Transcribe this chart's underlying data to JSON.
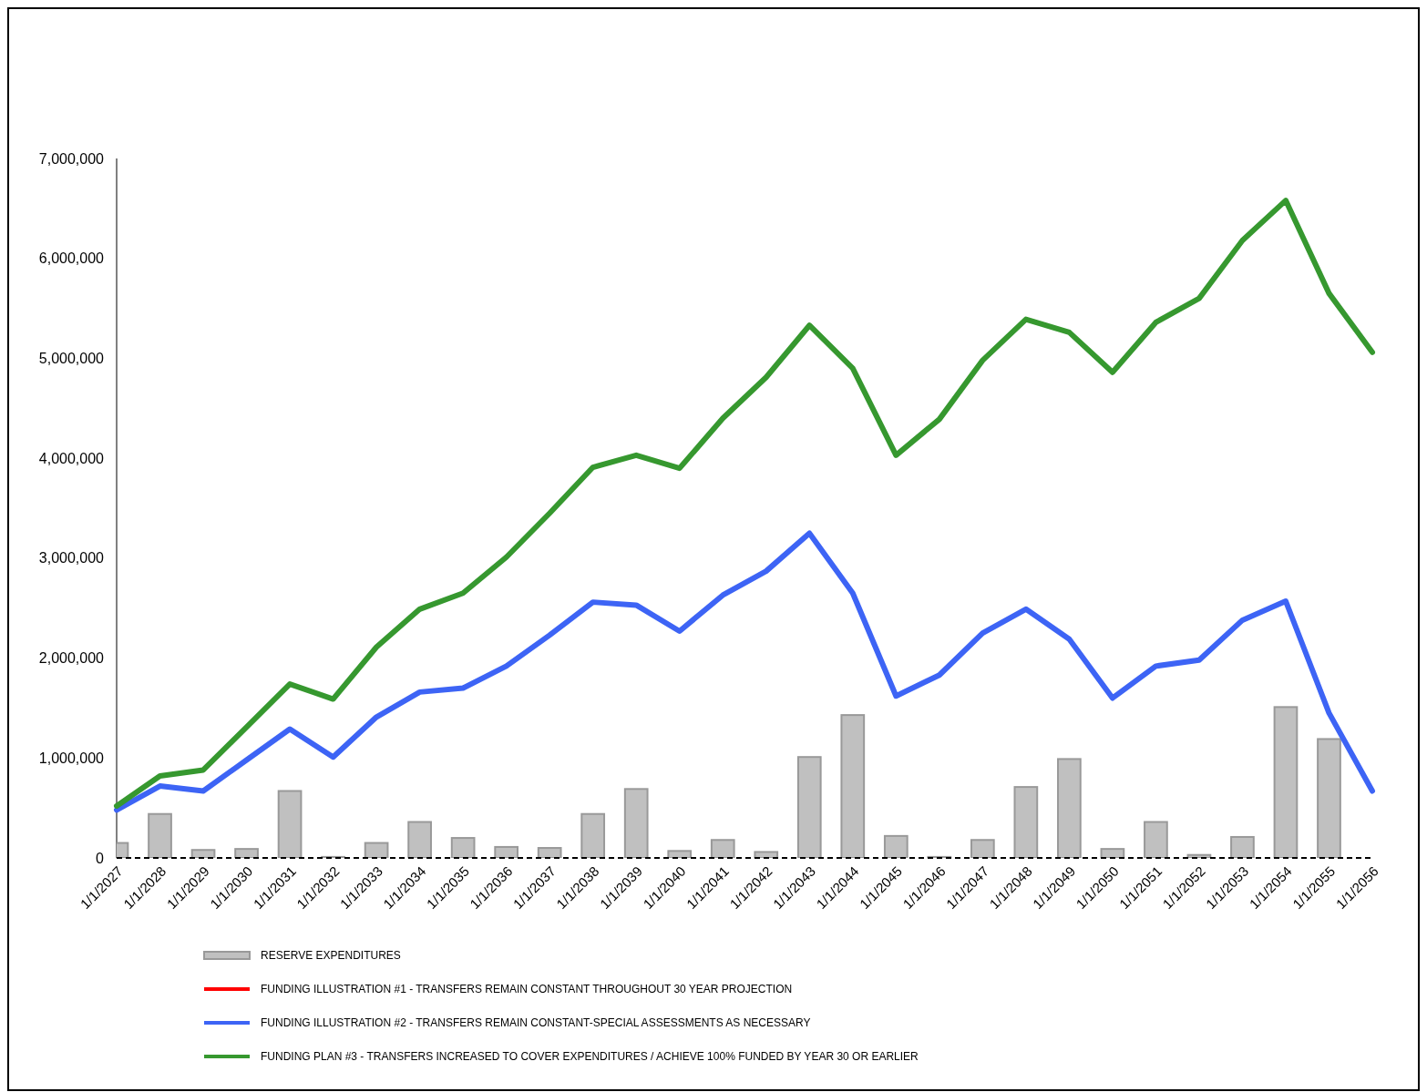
{
  "chart_data": {
    "type": "line",
    "categories": [
      "1/1/2027",
      "1/1/2028",
      "1/1/2029",
      "1/1/2030",
      "1/1/2031",
      "1/1/2032",
      "1/1/2033",
      "1/1/2034",
      "1/1/2035",
      "1/1/2036",
      "1/1/2037",
      "1/1/2038",
      "1/1/2039",
      "1/1/2040",
      "1/1/2041",
      "1/1/2042",
      "1/1/2043",
      "1/1/2044",
      "1/1/2045",
      "1/1/2046",
      "1/1/2047",
      "1/1/2048",
      "1/1/2049",
      "1/1/2050",
      "1/1/2051",
      "1/1/2052",
      "1/1/2053",
      "1/1/2054",
      "1/1/2055",
      "1/1/2056"
    ],
    "series": [
      {
        "name": "RESERVE EXPENDITURES",
        "type": "bar",
        "color": "#c0c0c0",
        "values": [
          150000,
          440000,
          80000,
          90000,
          670000,
          10000,
          150000,
          360000,
          200000,
          110000,
          100000,
          440000,
          690000,
          70000,
          180000,
          60000,
          1010000,
          1430000,
          220000,
          10000,
          180000,
          710000,
          990000,
          90000,
          360000,
          30000,
          210000,
          1510000,
          1190000,
          0
        ]
      },
      {
        "name": "FUNDING ILLUSTRATION #1 - TRANSFERS REMAIN CONSTANT THROUGHOUT 30 YEAR PROJECTION",
        "color": "#ff0000",
        "values": [
          null,
          null,
          null,
          null,
          null,
          null,
          null,
          null,
          null,
          null,
          null,
          null,
          null,
          null,
          null,
          null,
          null,
          null,
          null,
          null,
          null,
          null,
          null,
          null,
          null,
          null,
          null,
          null,
          null,
          null
        ]
      },
      {
        "name": "FUNDING ILLUSTRATION #2 - TRANSFERS REMAIN CONSTANT-SPECIAL ASSESSMENTS AS NECESSARY",
        "color": "#3d64f5",
        "values": [
          480000,
          720000,
          670000,
          980000,
          1290000,
          1010000,
          1410000,
          1660000,
          1700000,
          1920000,
          2230000,
          2560000,
          2530000,
          2270000,
          2630000,
          2870000,
          3250000,
          2650000,
          1620000,
          1830000,
          2250000,
          2490000,
          2190000,
          1600000,
          1920000,
          1980000,
          2380000,
          2570000,
          1450000,
          670000
        ]
      },
      {
        "name": "FUNDING PLAN #3 - TRANSFERS INCREASED TO COVER EXPENDITURES / ACHIEVE 100% FUNDED BY YEAR 30 OR EARLIER",
        "color": "#36982f",
        "values": [
          520000,
          820000,
          880000,
          1310000,
          1740000,
          1590000,
          2110000,
          2490000,
          2650000,
          3010000,
          3450000,
          3910000,
          4030000,
          3900000,
          4400000,
          4810000,
          5330000,
          4900000,
          4030000,
          4390000,
          4980000,
          5390000,
          5260000,
          4860000,
          5360000,
          5600000,
          6180000,
          6580000,
          5650000,
          5060000
        ]
      }
    ],
    "ylim": [
      0,
      7000000
    ],
    "yticks": [
      {
        "value": 0,
        "label": "0"
      },
      {
        "value": 1000000,
        "label": "1,000,000"
      },
      {
        "value": 2000000,
        "label": "2,000,000"
      },
      {
        "value": 3000000,
        "label": "3,000,000"
      },
      {
        "value": 4000000,
        "label": "4,000,000"
      },
      {
        "value": 5000000,
        "label": "5,000,000"
      },
      {
        "value": 6000000,
        "label": "6,000,000"
      },
      {
        "value": 7000000,
        "label": "7,000,000"
      }
    ],
    "ref_lines": [
      {
        "axis": "y",
        "value": 0,
        "color": "#000000",
        "line_style": "dashed"
      }
    ],
    "grid": false,
    "legend": "bottom"
  }
}
